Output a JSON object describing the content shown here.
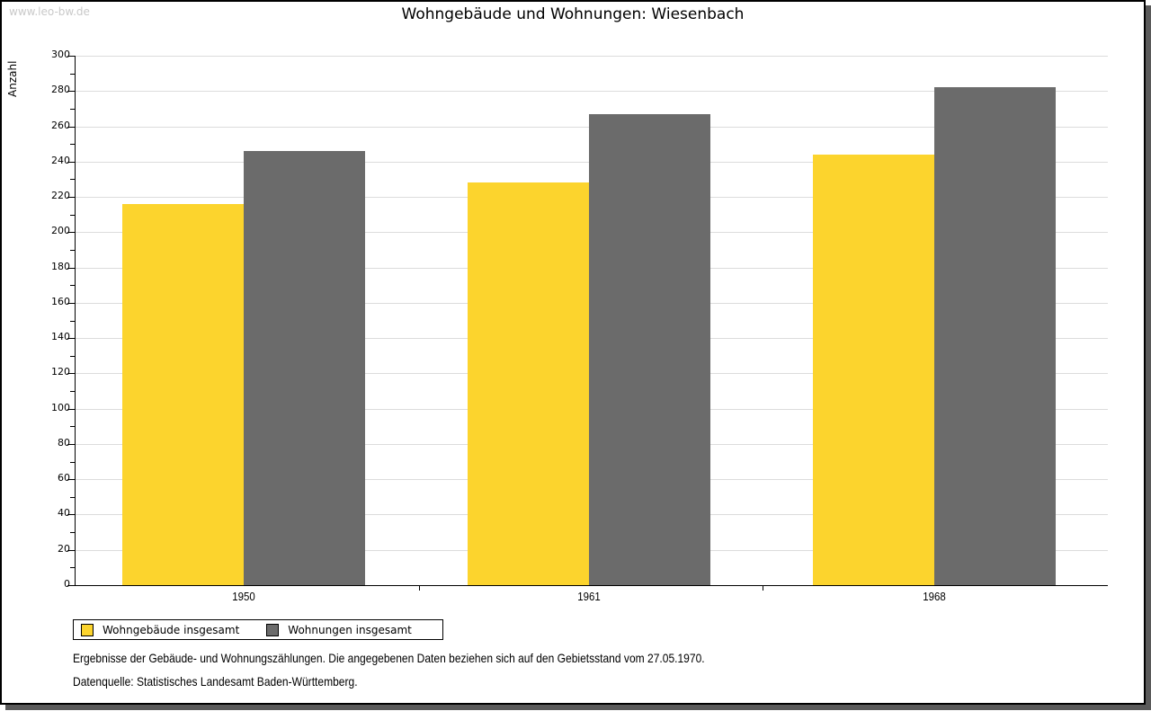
{
  "watermark": "www.leo-bw.de",
  "footnotes": [
    "Ergebnisse der Gebäude- und Wohnungszählungen. Die angegebenen Daten beziehen sich auf den Gebietsstand vom 27.05.1970.",
    "Datenquelle: Statistisches Landesamt Baden-Württemberg."
  ],
  "chart_data": {
    "type": "bar",
    "title": "Wohngebäude und Wohnungen: Wiesenbach",
    "ylabel": "Anzahl",
    "xlabel": "",
    "categories": [
      "1950",
      "1961",
      "1968"
    ],
    "series": [
      {
        "name": "Wohngebäude insgesamt",
        "color": "#FCD42D",
        "values": [
          216,
          228,
          244
        ]
      },
      {
        "name": "Wohnungen insgesamt",
        "color": "#6B6B6B",
        "values": [
          246,
          267,
          282
        ]
      }
    ],
    "ylim": [
      0,
      300
    ],
    "ytick_step": 20,
    "ytick_minor_step": 10,
    "grid": true,
    "legend_position": "bottom-left"
  },
  "colors": {
    "grid": "#DCDCDC",
    "axis": "#000000",
    "frame_shadow": "#5A5A5A",
    "watermark_text": "#C9C9C9"
  }
}
